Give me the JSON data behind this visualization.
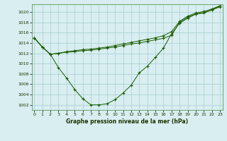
{
  "bg_color": "#d8eef0",
  "grid_color": "#a8ccd0",
  "line_color": "#1a5c00",
  "marker_color": "#1a5c00",
  "title": "Graphe pression niveau de la mer (hPa)",
  "xlim": [
    -0.3,
    23.3
  ],
  "ylim": [
    1001.0,
    1021.5
  ],
  "yticks": [
    1002,
    1004,
    1006,
    1008,
    1010,
    1012,
    1014,
    1016,
    1018,
    1020
  ],
  "xticks": [
    0,
    1,
    2,
    3,
    4,
    5,
    6,
    7,
    8,
    9,
    10,
    11,
    12,
    13,
    14,
    15,
    16,
    17,
    18,
    19,
    20,
    21,
    22,
    23
  ],
  "s1_x": [
    0,
    1,
    2,
    3,
    4,
    5,
    6,
    7,
    8,
    9,
    10,
    11,
    12,
    13,
    14,
    15,
    16,
    17,
    18,
    19,
    20,
    21,
    22,
    23
  ],
  "s1_y": [
    1015.0,
    1013.2,
    1011.8,
    1009.2,
    1007.2,
    1005.0,
    1003.2,
    1002.0,
    1002.0,
    1002.2,
    1003.0,
    1004.3,
    1005.8,
    1008.2,
    1009.5,
    1011.2,
    1013.0,
    1015.8,
    1017.8,
    1018.8,
    1019.6,
    1019.8,
    1020.4,
    1021.2
  ],
  "s2_x": [
    0,
    1,
    2,
    3,
    4,
    5,
    6,
    7,
    8,
    9,
    10,
    11,
    12,
    13,
    14,
    15,
    16,
    17,
    18,
    19,
    20,
    21,
    22,
    23
  ],
  "s2_y": [
    1015.0,
    1013.2,
    1011.8,
    1012.0,
    1012.2,
    1012.3,
    1012.5,
    1012.6,
    1012.8,
    1013.0,
    1013.2,
    1013.5,
    1013.8,
    1014.0,
    1014.3,
    1014.6,
    1014.9,
    1015.5,
    1018.0,
    1019.0,
    1019.6,
    1019.9,
    1020.4,
    1021.0
  ],
  "s3_x": [
    0,
    1,
    2,
    3,
    4,
    5,
    6,
    7,
    8,
    9,
    10,
    11,
    12,
    13,
    14,
    15,
    16,
    17,
    18,
    19,
    20,
    21,
    22,
    23
  ],
  "s3_y": [
    1015.0,
    1013.2,
    1011.8,
    1012.0,
    1012.3,
    1012.5,
    1012.7,
    1012.8,
    1013.0,
    1013.2,
    1013.5,
    1013.8,
    1014.1,
    1014.4,
    1014.7,
    1015.0,
    1015.4,
    1016.2,
    1018.2,
    1019.2,
    1019.8,
    1020.1,
    1020.6,
    1021.2
  ]
}
